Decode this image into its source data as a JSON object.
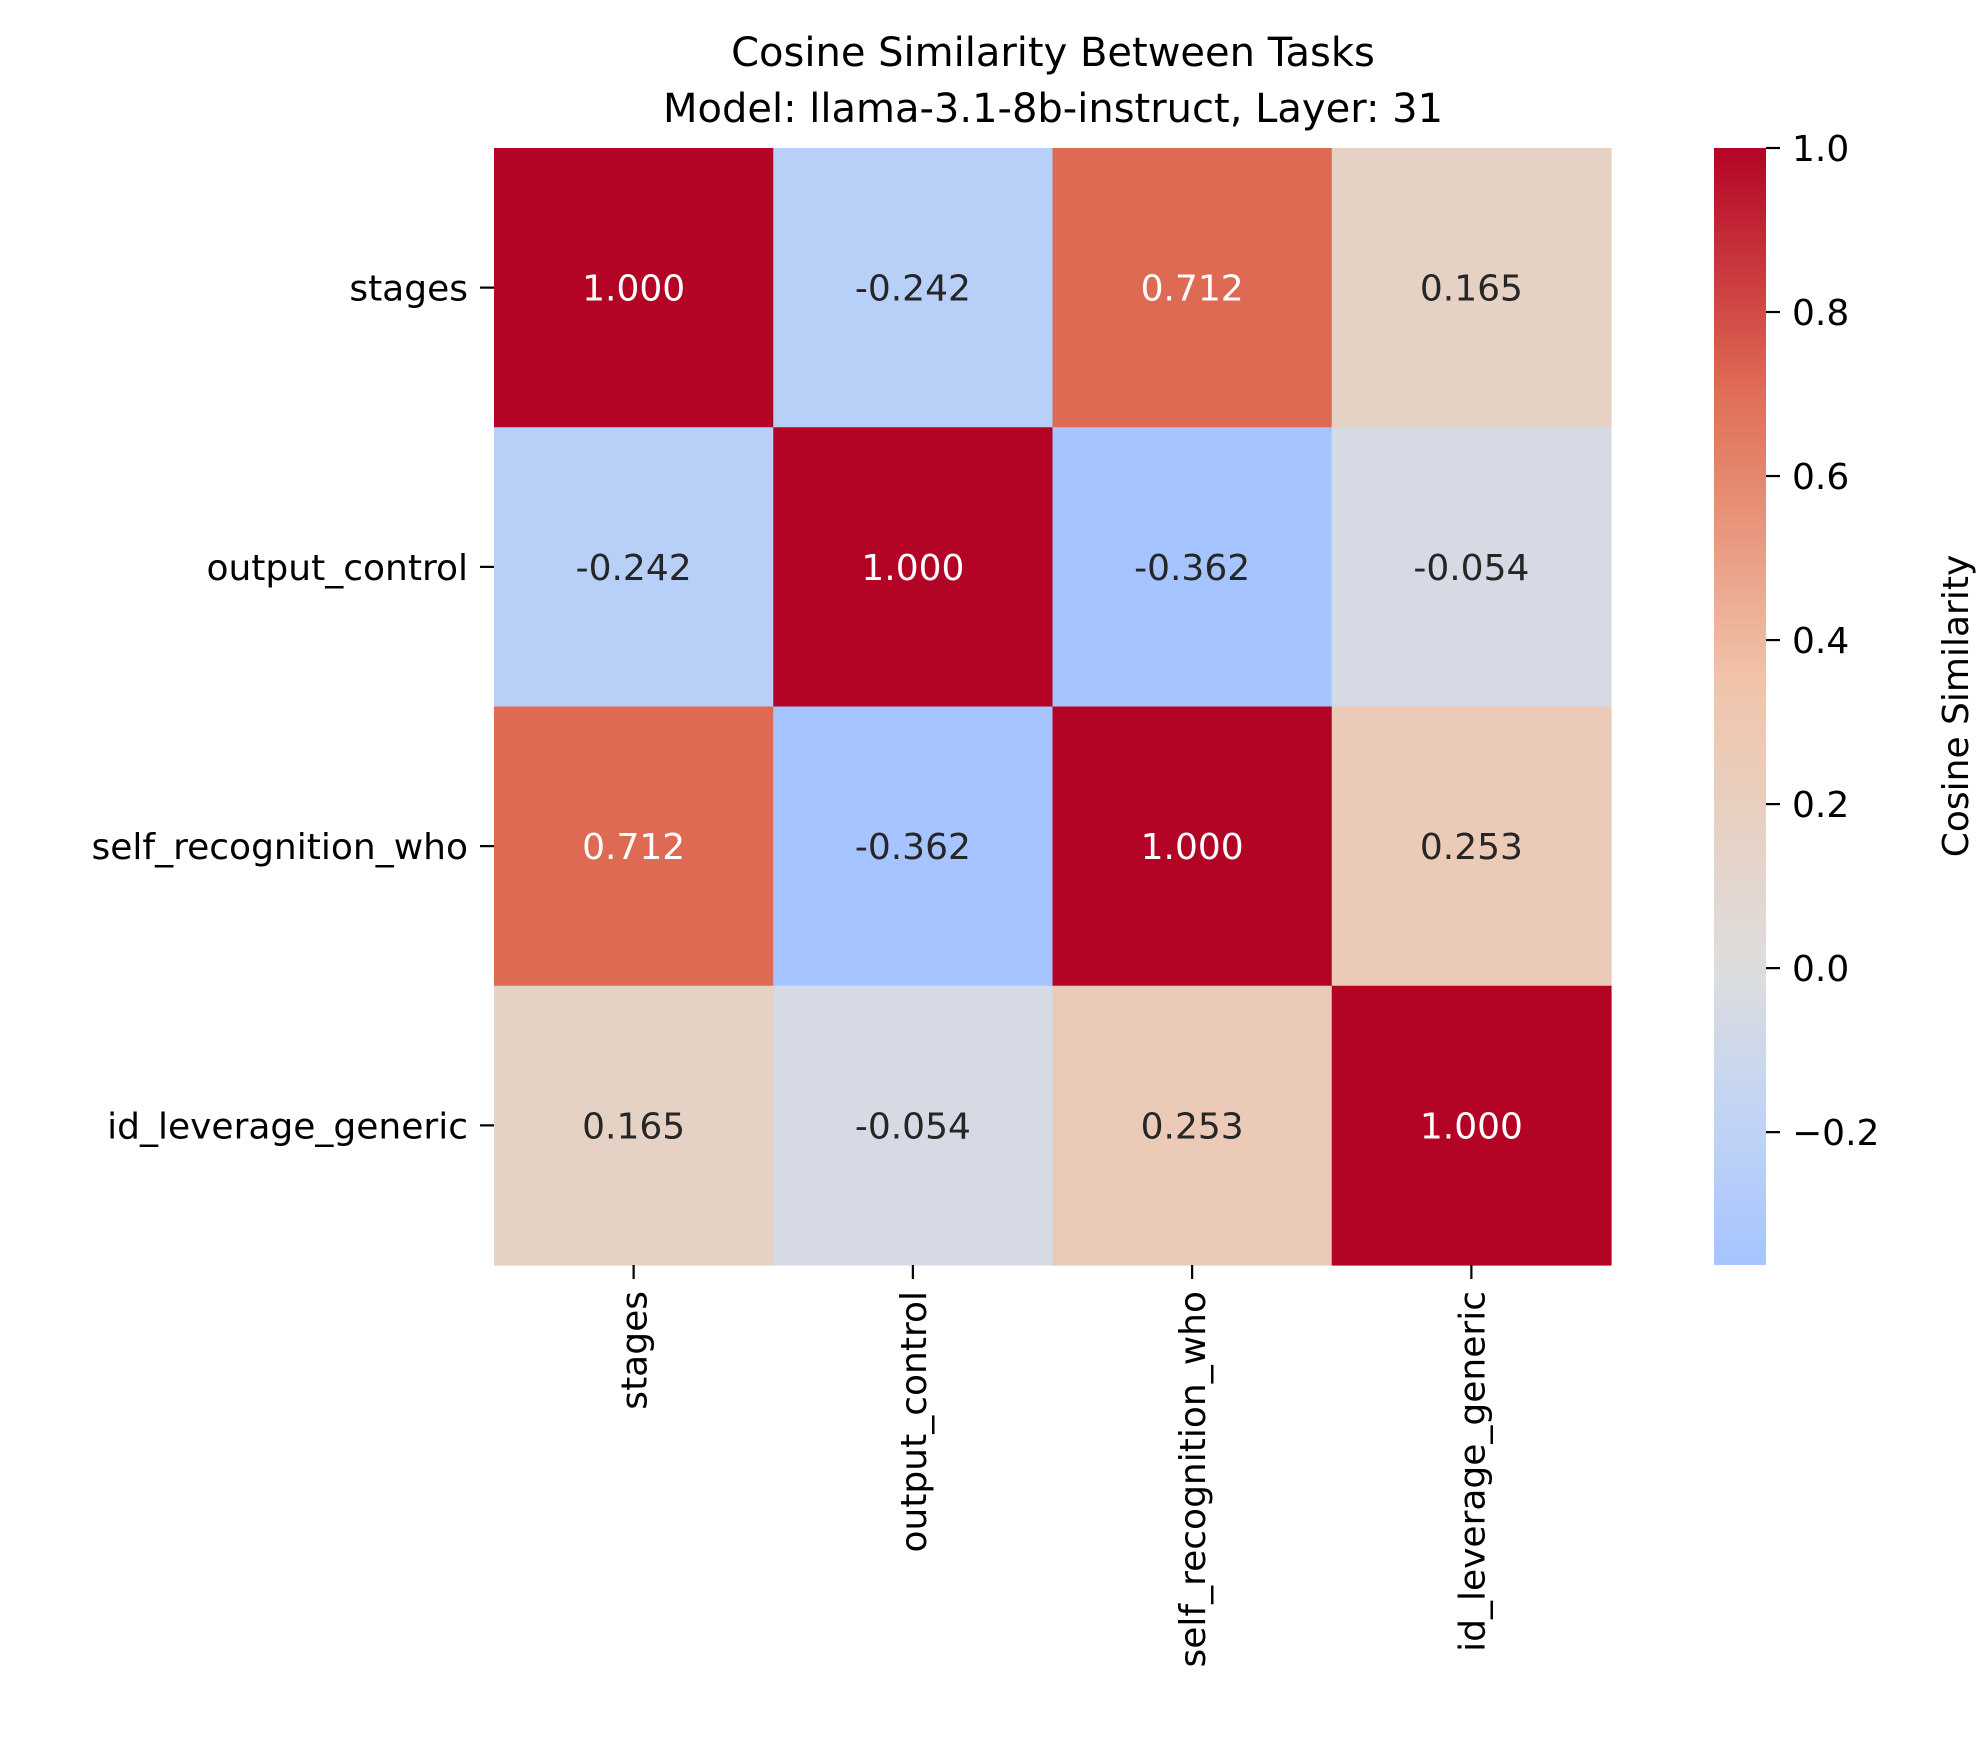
{
  "chart_data": {
    "type": "heatmap",
    "title": "Cosine Similarity Between Tasks",
    "subtitle": "Model: llama-3.1-8b-instruct, Layer: 31",
    "categories": [
      "stages",
      "output_control",
      "self_recognition_who",
      "id_leverage_generic"
    ],
    "x": [
      "stages",
      "output_control",
      "self_recognition_who",
      "id_leverage_generic"
    ],
    "y": [
      "stages",
      "output_control",
      "self_recognition_who",
      "id_leverage_generic"
    ],
    "values": [
      [
        1.0,
        -0.242,
        0.712,
        0.165
      ],
      [
        -0.242,
        1.0,
        -0.362,
        -0.054
      ],
      [
        0.712,
        -0.362,
        1.0,
        0.253
      ],
      [
        0.165,
        -0.054,
        0.253,
        1.0
      ]
    ],
    "value_labels": [
      [
        "1.000",
        "-0.242",
        "0.712",
        "0.165"
      ],
      [
        "-0.242",
        "1.000",
        "-0.362",
        "-0.054"
      ],
      [
        "0.712",
        "-0.362",
        "1.000",
        "0.253"
      ],
      [
        "0.165",
        "-0.054",
        "0.253",
        "1.000"
      ]
    ],
    "colormap": "coolwarm",
    "center": 0,
    "colorbar": {
      "label": "Cosine Similarity",
      "range": [
        -0.362,
        1.0
      ],
      "ticks": [
        1.0,
        0.8,
        0.6,
        0.4,
        0.2,
        0.0,
        -0.2
      ],
      "tick_labels": [
        "1.0",
        "0.8",
        "0.6",
        "0.4",
        "0.2",
        "0.0",
        "−0.2"
      ]
    },
    "colors": {
      "low": "#3b4cc0",
      "mid": "#dddddd",
      "high": "#b40426",
      "text_dark": "#262626",
      "text_light": "#ffffff"
    },
    "grid": false,
    "x_tick_rotation": "vertical"
  }
}
